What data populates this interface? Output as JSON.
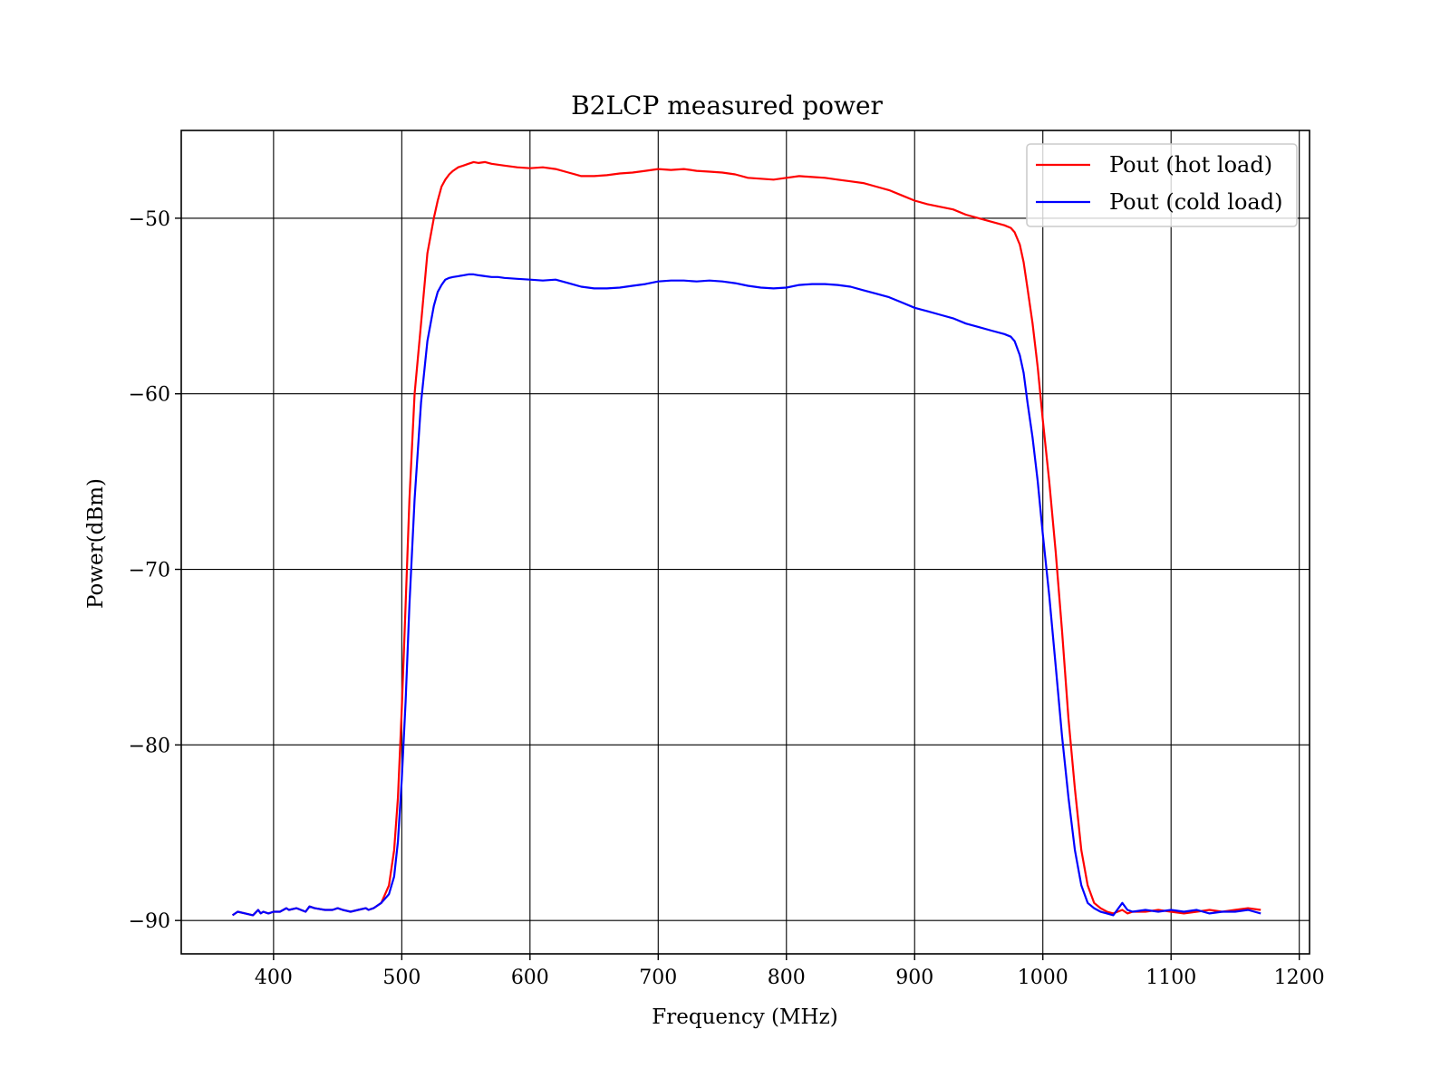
{
  "chart_data": {
    "type": "line",
    "title": "B2LCP measured power",
    "xlabel": "Frequency (MHz)",
    "ylabel": "Power(dBm)",
    "xlim": [
      328,
      1208
    ],
    "ylim": [
      -91.9,
      -45.0
    ],
    "xticks": [
      400,
      500,
      600,
      700,
      800,
      900,
      1000,
      1100,
      1200
    ],
    "yticks": [
      -90,
      -80,
      -70,
      -60,
      -50
    ],
    "xtick_labels": [
      "400",
      "500",
      "600",
      "700",
      "800",
      "900",
      "1000",
      "1100",
      "1200"
    ],
    "ytick_labels": [
      "−90",
      "−80",
      "−70",
      "−60",
      "−50"
    ],
    "grid": true,
    "legend": "top-right",
    "series": [
      {
        "name": "Pout (hot load)",
        "color": "#ff0000",
        "x": [
          368,
          372,
          378,
          384,
          388,
          390,
          392,
          396,
          400,
          405,
          410,
          412,
          418,
          425,
          428,
          432,
          440,
          446,
          450,
          454,
          460,
          466,
          472,
          474,
          478,
          484,
          490,
          494,
          497,
          500,
          503,
          506,
          510,
          515,
          520,
          525,
          528,
          531,
          534,
          537,
          540,
          544,
          548,
          552,
          556,
          560,
          565,
          570,
          575,
          580,
          590,
          600,
          610,
          620,
          630,
          640,
          650,
          660,
          670,
          680,
          690,
          700,
          710,
          720,
          730,
          740,
          750,
          760,
          770,
          780,
          790,
          800,
          810,
          820,
          830,
          840,
          850,
          860,
          870,
          880,
          890,
          900,
          910,
          920,
          930,
          940,
          950,
          960,
          970,
          975,
          978,
          982,
          985,
          988,
          992,
          996,
          1000,
          1005,
          1010,
          1015,
          1020,
          1025,
          1030,
          1035,
          1040,
          1045,
          1050,
          1055,
          1062,
          1066,
          1070,
          1080,
          1090,
          1100,
          1110,
          1120,
          1130,
          1140,
          1150,
          1160,
          1170
        ],
        "y": [
          -89.7,
          -89.5,
          -89.6,
          -89.7,
          -89.4,
          -89.6,
          -89.5,
          -89.6,
          -89.5,
          -89.5,
          -89.3,
          -89.4,
          -89.3,
          -89.5,
          -89.2,
          -89.3,
          -89.4,
          -89.4,
          -89.3,
          -89.4,
          -89.5,
          -89.4,
          -89.3,
          -89.4,
          -89.3,
          -89.0,
          -88.0,
          -86.0,
          -83.0,
          -78.0,
          -72.0,
          -66.0,
          -60.0,
          -56.0,
          -52.0,
          -50.0,
          -49.0,
          -48.2,
          -47.8,
          -47.5,
          -47.3,
          -47.1,
          -47.0,
          -46.9,
          -46.8,
          -46.85,
          -46.8,
          -46.9,
          -46.95,
          -47.0,
          -47.1,
          -47.15,
          -47.1,
          -47.2,
          -47.4,
          -47.6,
          -47.6,
          -47.55,
          -47.45,
          -47.4,
          -47.3,
          -47.2,
          -47.25,
          -47.2,
          -47.3,
          -47.35,
          -47.4,
          -47.5,
          -47.7,
          -47.75,
          -47.8,
          -47.7,
          -47.6,
          -47.65,
          -47.7,
          -47.8,
          -47.9,
          -48.0,
          -48.2,
          -48.4,
          -48.7,
          -49.0,
          -49.2,
          -49.35,
          -49.5,
          -49.8,
          -50.0,
          -50.2,
          -50.4,
          -50.55,
          -50.8,
          -51.5,
          -52.5,
          -54.0,
          -56.0,
          -58.5,
          -61.5,
          -65.0,
          -69.0,
          -73.5,
          -78.5,
          -82.5,
          -86.0,
          -88.0,
          -89.0,
          -89.3,
          -89.5,
          -89.6,
          -89.4,
          -89.6,
          -89.5,
          -89.5,
          -89.4,
          -89.5,
          -89.6,
          -89.5,
          -89.4,
          -89.5,
          -89.4,
          -89.3,
          -89.4
        ]
      },
      {
        "name": "Pout (cold load)",
        "color": "#0000ff",
        "x": [
          368,
          372,
          378,
          384,
          388,
          390,
          392,
          396,
          400,
          405,
          410,
          412,
          418,
          425,
          428,
          432,
          440,
          446,
          450,
          454,
          460,
          466,
          472,
          474,
          478,
          484,
          490,
          494,
          497,
          500,
          503,
          506,
          510,
          515,
          520,
          525,
          528,
          531,
          534,
          537,
          540,
          544,
          548,
          552,
          556,
          560,
          565,
          570,
          575,
          580,
          590,
          600,
          610,
          620,
          630,
          640,
          650,
          660,
          670,
          680,
          690,
          700,
          710,
          720,
          730,
          740,
          750,
          760,
          770,
          780,
          790,
          800,
          810,
          820,
          830,
          840,
          850,
          860,
          870,
          880,
          890,
          900,
          910,
          920,
          930,
          940,
          950,
          960,
          970,
          975,
          978,
          982,
          985,
          988,
          992,
          996,
          1000,
          1005,
          1010,
          1015,
          1020,
          1025,
          1030,
          1035,
          1040,
          1045,
          1050,
          1055,
          1062,
          1066,
          1070,
          1080,
          1090,
          1100,
          1110,
          1120,
          1130,
          1140,
          1150,
          1160,
          1170
        ],
        "y": [
          -89.7,
          -89.5,
          -89.6,
          -89.7,
          -89.4,
          -89.6,
          -89.5,
          -89.6,
          -89.5,
          -89.5,
          -89.3,
          -89.4,
          -89.3,
          -89.5,
          -89.2,
          -89.3,
          -89.4,
          -89.4,
          -89.3,
          -89.4,
          -89.5,
          -89.4,
          -89.3,
          -89.4,
          -89.3,
          -89.0,
          -88.5,
          -87.5,
          -85.5,
          -82.0,
          -77.5,
          -72.0,
          -66.0,
          -60.5,
          -57.0,
          -55.0,
          -54.2,
          -53.8,
          -53.5,
          -53.4,
          -53.35,
          -53.3,
          -53.25,
          -53.2,
          -53.2,
          -53.25,
          -53.3,
          -53.35,
          -53.35,
          -53.4,
          -53.45,
          -53.5,
          -53.55,
          -53.5,
          -53.7,
          -53.9,
          -54.0,
          -54.0,
          -53.95,
          -53.85,
          -53.75,
          -53.6,
          -53.55,
          -53.55,
          -53.6,
          -53.55,
          -53.6,
          -53.7,
          -53.85,
          -53.95,
          -54.0,
          -53.95,
          -53.8,
          -53.75,
          -53.75,
          -53.8,
          -53.9,
          -54.1,
          -54.3,
          -54.5,
          -54.8,
          -55.1,
          -55.3,
          -55.5,
          -55.7,
          -56.0,
          -56.2,
          -56.4,
          -56.6,
          -56.75,
          -57.0,
          -57.8,
          -58.8,
          -60.5,
          -62.5,
          -65.0,
          -68.0,
          -71.5,
          -75.5,
          -79.5,
          -83.0,
          -86.0,
          -88.0,
          -89.0,
          -89.3,
          -89.5,
          -89.6,
          -89.7,
          -89.0,
          -89.4,
          -89.5,
          -89.4,
          -89.5,
          -89.4,
          -89.5,
          -89.4,
          -89.6,
          -89.5,
          -89.5,
          -89.4,
          -89.6
        ]
      }
    ]
  }
}
